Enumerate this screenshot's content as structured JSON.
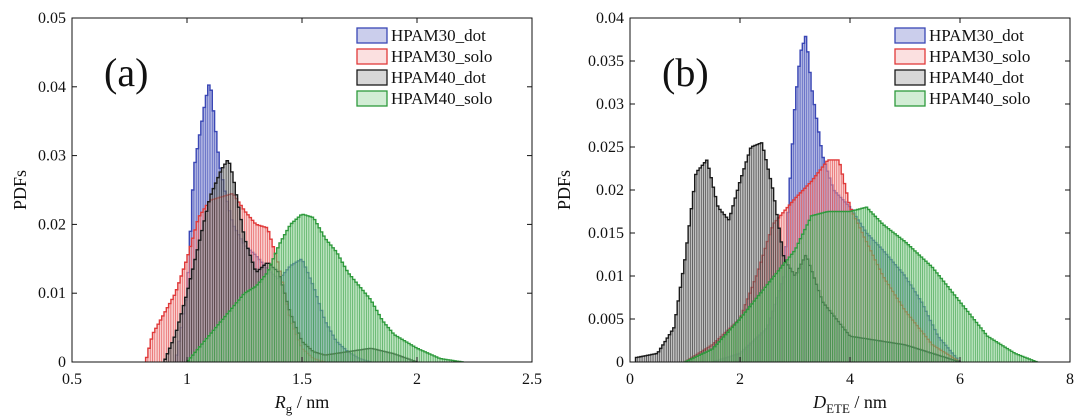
{
  "chart_data": [
    {
      "type": "area",
      "panel_label": "(a)",
      "xlabel_main": "R",
      "xlabel_sub": "g",
      "xlabel_unit": " / nm",
      "ylabel": "PDFs",
      "xlim": [
        0.5,
        2.5
      ],
      "ylim": [
        0,
        0.05
      ],
      "xticks": [
        "0.5",
        "1",
        "1.5",
        "2",
        "2.5"
      ],
      "yticks": [
        "0",
        "0.01",
        "0.02",
        "0.03",
        "0.04",
        "0.05"
      ],
      "legend_position": "top-right",
      "series": [
        {
          "name": "HPAM30_dot",
          "color": "#3a47b5",
          "fill": "#6b74c9",
          "x": [
            0.95,
            1.0,
            1.03,
            1.06,
            1.08,
            1.1,
            1.12,
            1.14,
            1.17,
            1.2,
            1.25,
            1.3,
            1.35,
            1.4,
            1.45,
            1.5,
            1.55,
            1.6,
            1.65,
            1.7,
            1.75,
            1.8
          ],
          "y": [
            0.0,
            0.01,
            0.028,
            0.034,
            0.038,
            0.041,
            0.035,
            0.029,
            0.024,
            0.02,
            0.017,
            0.0155,
            0.0135,
            0.012,
            0.014,
            0.015,
            0.011,
            0.006,
            0.003,
            0.0015,
            0.0005,
            0.0
          ]
        },
        {
          "name": "HPAM30_solo",
          "color": "#e03a3a",
          "fill": "#f4a5a5",
          "x": [
            0.82,
            0.85,
            0.9,
            0.95,
            1.0,
            1.05,
            1.1,
            1.15,
            1.2,
            1.25,
            1.3,
            1.35,
            1.4,
            1.45,
            1.5,
            1.55,
            1.6
          ],
          "y": [
            0.0,
            0.004,
            0.007,
            0.01,
            0.015,
            0.021,
            0.0235,
            0.024,
            0.0245,
            0.022,
            0.02,
            0.0195,
            0.014,
            0.006,
            0.002,
            0.0005,
            0.0
          ]
        },
        {
          "name": "HPAM40_dot",
          "color": "#1a1a1a",
          "fill": "#8c8c8c",
          "x": [
            0.9,
            0.95,
            1.0,
            1.05,
            1.1,
            1.15,
            1.18,
            1.2,
            1.25,
            1.3,
            1.35,
            1.4,
            1.45,
            1.5,
            1.55,
            1.6,
            1.7,
            1.8,
            1.9,
            2.0
          ],
          "y": [
            0.0,
            0.004,
            0.01,
            0.017,
            0.024,
            0.028,
            0.0295,
            0.027,
            0.018,
            0.013,
            0.0145,
            0.013,
            0.007,
            0.003,
            0.0015,
            0.001,
            0.0015,
            0.002,
            0.0012,
            0.0
          ]
        },
        {
          "name": "HPAM40_solo",
          "color": "#2e9a3c",
          "fill": "#7fca87",
          "x": [
            1.0,
            1.05,
            1.1,
            1.15,
            1.2,
            1.25,
            1.3,
            1.35,
            1.4,
            1.45,
            1.5,
            1.55,
            1.6,
            1.65,
            1.7,
            1.75,
            1.8,
            1.85,
            1.9,
            1.95,
            2.0,
            2.1,
            2.2
          ],
          "y": [
            0.0,
            0.002,
            0.004,
            0.006,
            0.008,
            0.01,
            0.011,
            0.013,
            0.017,
            0.02,
            0.0215,
            0.021,
            0.018,
            0.016,
            0.013,
            0.011,
            0.009,
            0.006,
            0.004,
            0.003,
            0.002,
            0.0005,
            0.0
          ]
        }
      ]
    },
    {
      "type": "area",
      "panel_label": "(b)",
      "xlabel_main": "D",
      "xlabel_sub": "ETE",
      "xlabel_unit": " / nm",
      "ylabel": "PDFs",
      "xlim": [
        0,
        8
      ],
      "ylim": [
        0,
        0.04
      ],
      "xticks": [
        "0",
        "2",
        "4",
        "6",
        "8"
      ],
      "yticks": [
        "0",
        "0.005",
        "0.01",
        "0.015",
        "0.02",
        "0.025",
        "0.03",
        "0.035",
        "0.04"
      ],
      "legend_position": "top-right",
      "series": [
        {
          "name": "HPAM30_dot",
          "color": "#3a47b5",
          "fill": "#6b74c9",
          "x": [
            1.5,
            2.0,
            2.5,
            2.8,
            3.0,
            3.1,
            3.2,
            3.3,
            3.5,
            3.7,
            4.0,
            4.3,
            4.6,
            5.0,
            5.3,
            5.6,
            6.0
          ],
          "y": [
            0.0,
            0.001,
            0.004,
            0.01,
            0.03,
            0.036,
            0.038,
            0.032,
            0.024,
            0.02,
            0.018,
            0.015,
            0.013,
            0.01,
            0.007,
            0.003,
            0.0
          ]
        },
        {
          "name": "HPAM30_solo",
          "color": "#e03a3a",
          "fill": "#f4a5a5",
          "x": [
            1.0,
            1.5,
            2.0,
            2.3,
            2.6,
            3.0,
            3.3,
            3.6,
            3.8,
            4.0,
            4.3,
            4.6,
            5.0,
            5.5,
            6.0
          ],
          "y": [
            0.0,
            0.002,
            0.005,
            0.01,
            0.016,
            0.019,
            0.021,
            0.0235,
            0.0235,
            0.018,
            0.014,
            0.01,
            0.006,
            0.002,
            0.0
          ]
        },
        {
          "name": "HPAM40_dot",
          "color": "#1a1a1a",
          "fill": "#8c8c8c",
          "x": [
            0.1,
            0.5,
            0.8,
            1.0,
            1.2,
            1.4,
            1.6,
            1.8,
            2.0,
            2.2,
            2.4,
            2.6,
            2.8,
            3.0,
            3.2,
            3.5,
            4.0,
            4.5,
            5.0,
            5.5,
            6.0
          ],
          "y": [
            0.0005,
            0.001,
            0.004,
            0.012,
            0.022,
            0.0235,
            0.018,
            0.0165,
            0.021,
            0.025,
            0.0255,
            0.02,
            0.012,
            0.01,
            0.0125,
            0.007,
            0.003,
            0.0025,
            0.002,
            0.001,
            0.0
          ]
        },
        {
          "name": "HPAM40_solo",
          "color": "#2e9a3c",
          "fill": "#7fca87",
          "x": [
            1.0,
            1.5,
            2.0,
            2.5,
            3.0,
            3.3,
            3.6,
            4.0,
            4.3,
            4.6,
            5.0,
            5.5,
            6.0,
            6.5,
            7.0,
            7.4
          ],
          "y": [
            0.0,
            0.0015,
            0.005,
            0.009,
            0.013,
            0.017,
            0.0175,
            0.0175,
            0.018,
            0.016,
            0.014,
            0.011,
            0.007,
            0.003,
            0.001,
            0.0
          ]
        }
      ]
    }
  ]
}
